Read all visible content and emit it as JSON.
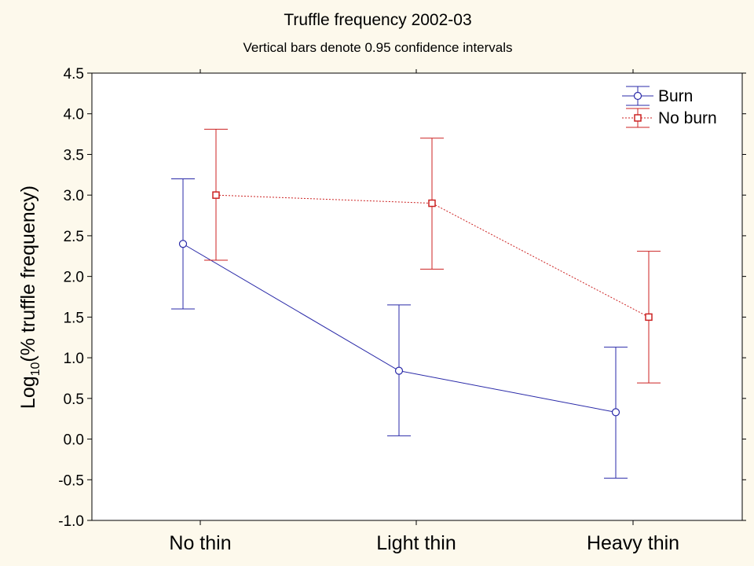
{
  "chart_data": {
    "type": "line",
    "title": "Truffle frequency 2002-03",
    "subtitle": "Vertical bars denote 0.95 confidence intervals",
    "ylabel_main": "Log",
    "ylabel_sub": "10",
    "ylabel_rest": "(% truffle frequency)",
    "xlabel": "",
    "categories": [
      "No thin",
      "Light thin",
      "Heavy thin"
    ],
    "ylim": [
      -1.0,
      4.5
    ],
    "yticks": [
      -1.0,
      -0.5,
      0.0,
      0.5,
      1.0,
      1.5,
      2.0,
      2.5,
      3.0,
      3.5,
      4.0,
      4.5
    ],
    "ytick_labels": [
      "-1.0",
      "-0.5",
      "0.0",
      "0.5",
      "1.0",
      "1.5",
      "2.0",
      "2.5",
      "3.0",
      "3.5",
      "4.0",
      "4.5"
    ],
    "grid": false,
    "legend_position": "top-right",
    "series": [
      {
        "name": "Burn",
        "color": "#2a2aa8",
        "marker": "circle",
        "line_style": "solid",
        "values": [
          2.4,
          0.84,
          0.33
        ],
        "ci_low": [
          1.6,
          0.04,
          -0.48
        ],
        "ci_high": [
          3.2,
          1.65,
          1.13
        ]
      },
      {
        "name": "No burn",
        "color": "#cc2222",
        "marker": "square",
        "line_style": "dotted",
        "values": [
          3.0,
          2.9,
          1.5
        ],
        "ci_low": [
          2.2,
          2.09,
          0.69
        ],
        "ci_high": [
          3.81,
          3.7,
          2.31
        ]
      }
    ]
  }
}
